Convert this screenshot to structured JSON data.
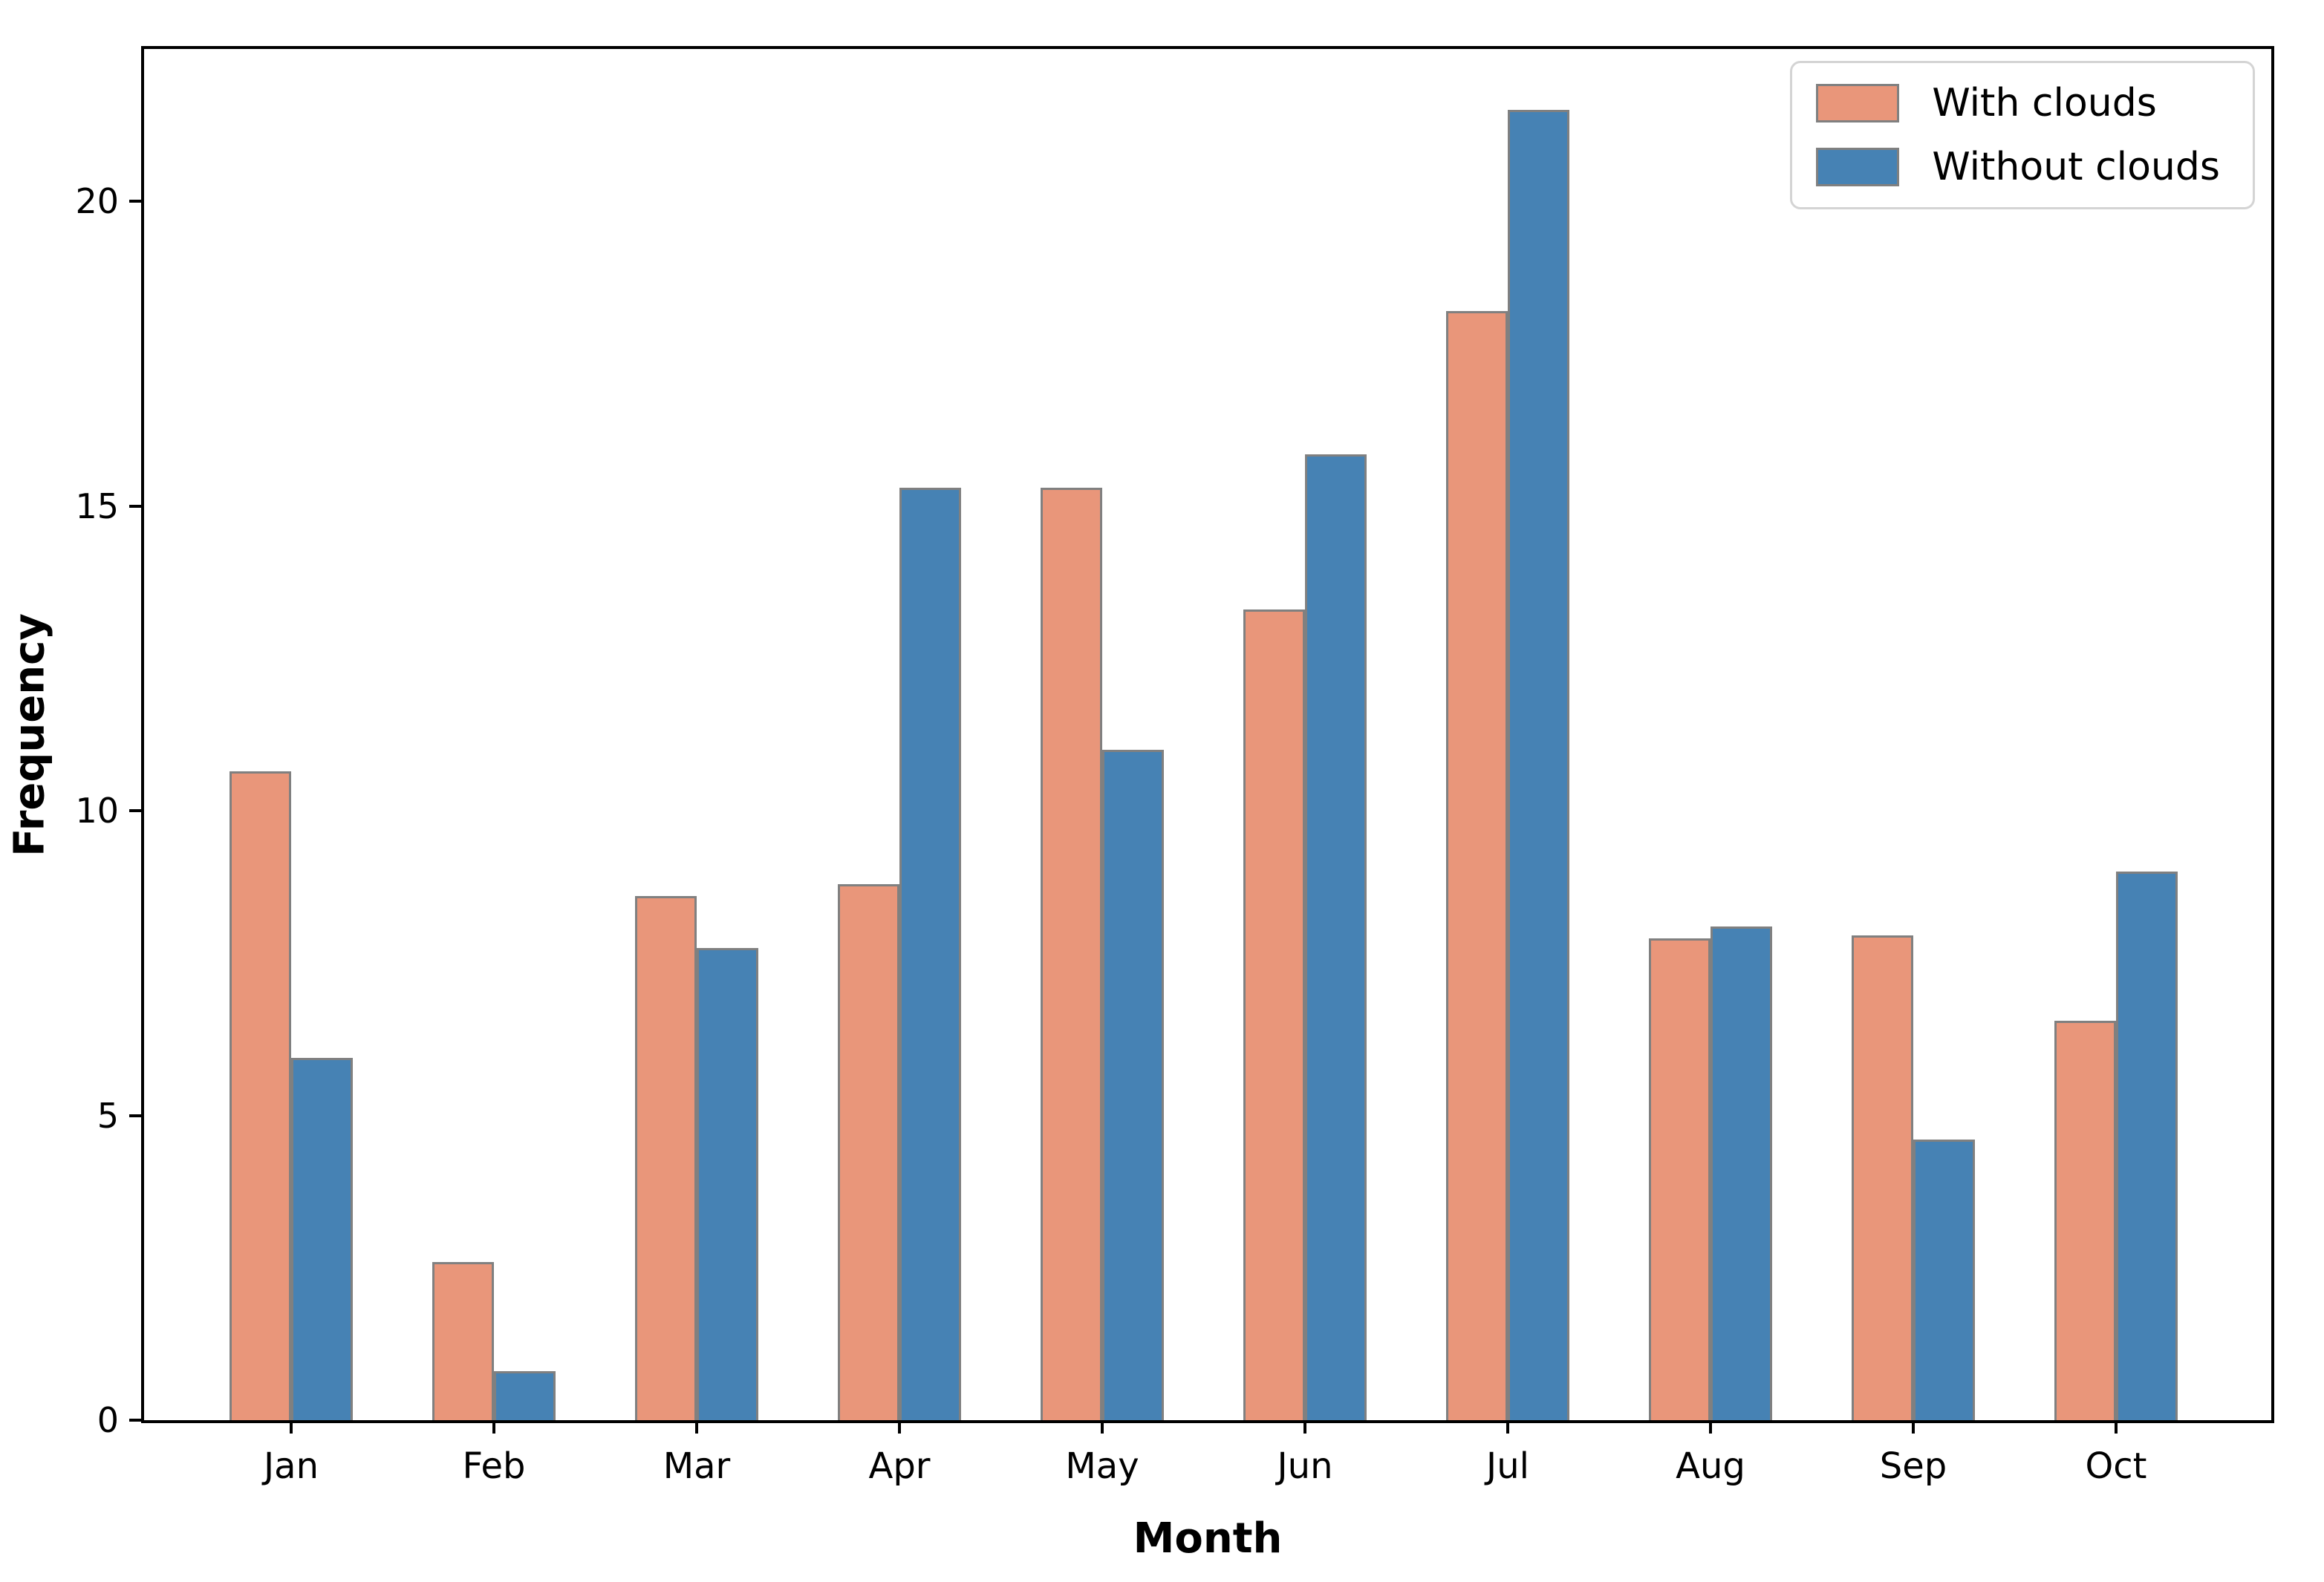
{
  "chart_data": {
    "type": "bar",
    "title": "",
    "xlabel": "Month",
    "ylabel": "Frequency",
    "categories": [
      "Jan",
      "Feb",
      "Mar",
      "Apr",
      "May",
      "Jun",
      "Jul",
      "Aug",
      "Sep",
      "Oct"
    ],
    "series": [
      {
        "name": "With clouds",
        "color": "#E9967A",
        "values": [
          10.65,
          2.6,
          8.6,
          8.8,
          15.3,
          13.3,
          18.2,
          7.9,
          7.95,
          6.55
        ]
      },
      {
        "name": "Without clouds",
        "color": "#4682B4",
        "values": [
          5.95,
          0.8,
          7.75,
          15.3,
          11.0,
          15.85,
          21.5,
          8.1,
          4.6,
          9.0
        ]
      }
    ],
    "yticks": [
      0,
      5,
      10,
      15,
      20
    ],
    "ylim": [
      0,
      22.5
    ],
    "bar_edge_color": "#808080",
    "axis_color": "#000000",
    "legend_position": "upper-right",
    "grid": false
  }
}
